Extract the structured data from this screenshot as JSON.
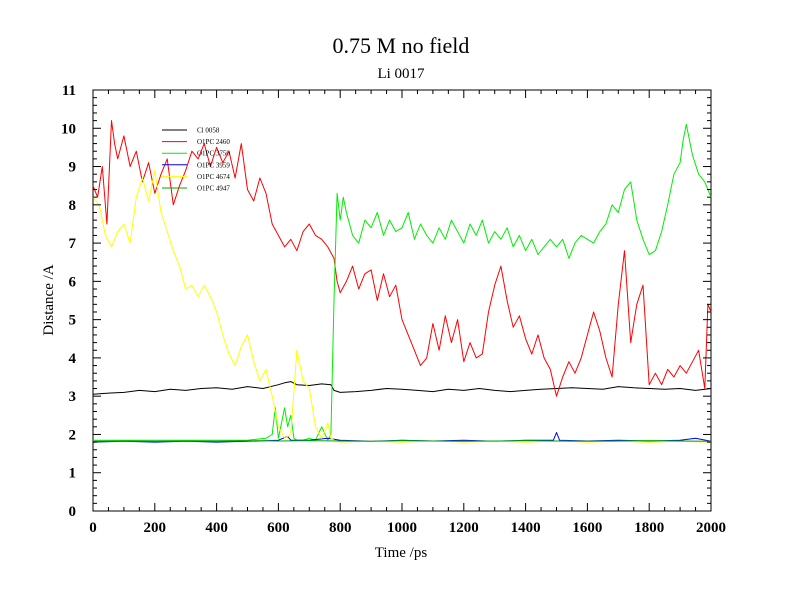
{
  "chart_data": {
    "type": "line",
    "title": "0.75 M no field",
    "subtitle": "Li 0017",
    "xlabel": "Time /ps",
    "ylabel": "Distance /A",
    "xlim": [
      0,
      2000
    ],
    "ylim": [
      0,
      11
    ],
    "xticks": [
      0,
      200,
      400,
      600,
      800,
      1000,
      1200,
      1400,
      1600,
      1800,
      2000
    ],
    "yticks": [
      0,
      1,
      2,
      3,
      4,
      5,
      6,
      7,
      8,
      9,
      10,
      11
    ],
    "grid": false,
    "legend_position": "top-left",
    "series": [
      {
        "name": "Cl 0058",
        "color": "#000000",
        "x": [
          0,
          50,
          100,
          150,
          200,
          250,
          300,
          350,
          400,
          450,
          500,
          550,
          600,
          620,
          640,
          660,
          700,
          740,
          770,
          780,
          800,
          850,
          900,
          950,
          1000,
          1050,
          1100,
          1150,
          1200,
          1250,
          1300,
          1350,
          1400,
          1450,
          1500,
          1550,
          1600,
          1650,
          1700,
          1750,
          1800,
          1850,
          1900,
          1950,
          2000
        ],
        "y": [
          3.05,
          3.08,
          3.1,
          3.15,
          3.12,
          3.18,
          3.15,
          3.2,
          3.22,
          3.18,
          3.25,
          3.2,
          3.3,
          3.35,
          3.38,
          3.3,
          3.28,
          3.32,
          3.3,
          3.15,
          3.1,
          3.12,
          3.15,
          3.2,
          3.18,
          3.15,
          3.12,
          3.18,
          3.15,
          3.2,
          3.15,
          3.12,
          3.15,
          3.18,
          3.2,
          3.22,
          3.2,
          3.18,
          3.25,
          3.22,
          3.2,
          3.18,
          3.2,
          3.15,
          3.2
        ]
      },
      {
        "name": "O1PC 2460",
        "color": "#ff0000",
        "x": [
          0,
          15,
          30,
          45,
          60,
          70,
          80,
          100,
          120,
          140,
          160,
          180,
          200,
          220,
          240,
          260,
          280,
          300,
          320,
          340,
          360,
          380,
          400,
          420,
          440,
          460,
          480,
          500,
          520,
          540,
          560,
          580,
          600,
          620,
          640,
          660,
          680,
          700,
          720,
          740,
          760,
          780,
          790,
          800,
          820,
          840,
          860,
          880,
          900,
          920,
          940,
          960,
          980,
          1000,
          1020,
          1040,
          1060,
          1080,
          1100,
          1120,
          1140,
          1160,
          1180,
          1200,
          1220,
          1240,
          1260,
          1280,
          1300,
          1320,
          1340,
          1360,
          1380,
          1400,
          1420,
          1440,
          1460,
          1480,
          1500,
          1520,
          1540,
          1560,
          1580,
          1600,
          1620,
          1640,
          1660,
          1680,
          1700,
          1720,
          1740,
          1760,
          1780,
          1800,
          1820,
          1840,
          1860,
          1880,
          1900,
          1920,
          1940,
          1960,
          1980,
          1990,
          2000
        ],
        "y": [
          8.5,
          8.2,
          9.0,
          7.5,
          10.2,
          9.6,
          9.2,
          9.8,
          9.0,
          9.4,
          8.6,
          9.1,
          8.3,
          8.8,
          9.2,
          8.0,
          8.5,
          8.9,
          9.4,
          9.2,
          9.6,
          9.0,
          9.5,
          9.1,
          9.4,
          8.7,
          9.6,
          8.4,
          8.1,
          8.7,
          8.3,
          7.5,
          7.2,
          6.9,
          7.1,
          6.8,
          7.3,
          7.5,
          7.2,
          7.1,
          6.9,
          6.6,
          6.0,
          5.7,
          6.0,
          6.4,
          5.8,
          6.2,
          6.3,
          5.5,
          6.2,
          5.6,
          5.9,
          5.0,
          4.6,
          4.2,
          3.8,
          4.0,
          4.9,
          4.2,
          5.1,
          4.4,
          5.0,
          3.9,
          4.4,
          4.0,
          4.1,
          5.2,
          5.9,
          6.4,
          5.5,
          4.8,
          5.1,
          4.5,
          4.1,
          4.6,
          4.0,
          3.7,
          3.0,
          3.5,
          3.9,
          3.6,
          4.0,
          4.6,
          5.2,
          4.7,
          4.0,
          3.5,
          5.4,
          6.8,
          4.4,
          5.4,
          5.9,
          3.3,
          3.6,
          3.3,
          3.7,
          3.5,
          3.8,
          3.6,
          3.9,
          4.2,
          3.2,
          5.4,
          5.2
        ]
      },
      {
        "name": "O1PC 3750",
        "color": "#00ee00",
        "x": [
          0,
          100,
          200,
          300,
          400,
          500,
          560,
          580,
          590,
          600,
          610,
          620,
          630,
          640,
          650,
          660,
          680,
          700,
          720,
          740,
          760,
          770,
          780,
          790,
          800,
          810,
          820,
          840,
          860,
          880,
          900,
          920,
          940,
          960,
          980,
          1000,
          1020,
          1040,
          1060,
          1080,
          1100,
          1120,
          1140,
          1160,
          1180,
          1200,
          1220,
          1240,
          1260,
          1280,
          1300,
          1320,
          1340,
          1360,
          1380,
          1400,
          1420,
          1440,
          1460,
          1480,
          1500,
          1520,
          1540,
          1560,
          1580,
          1600,
          1620,
          1640,
          1660,
          1680,
          1700,
          1720,
          1740,
          1760,
          1780,
          1800,
          1820,
          1840,
          1860,
          1880,
          1900,
          1910,
          1920,
          1940,
          1960,
          1980,
          2000
        ],
        "y": [
          1.85,
          1.85,
          1.85,
          1.85,
          1.85,
          1.85,
          1.9,
          2.0,
          2.7,
          1.9,
          2.3,
          2.7,
          2.2,
          2.5,
          1.9,
          1.85,
          1.85,
          1.9,
          1.85,
          2.2,
          1.85,
          2.0,
          5.5,
          8.3,
          7.6,
          8.2,
          7.8,
          7.2,
          7.0,
          7.6,
          7.4,
          7.8,
          7.2,
          7.6,
          7.3,
          7.4,
          7.8,
          7.1,
          7.5,
          7.2,
          7.0,
          7.4,
          7.1,
          7.6,
          7.3,
          7.0,
          7.5,
          7.2,
          7.6,
          7.0,
          7.3,
          7.1,
          7.4,
          6.9,
          7.2,
          6.8,
          7.1,
          6.7,
          6.9,
          7.1,
          6.9,
          7.1,
          6.6,
          7.0,
          7.2,
          7.1,
          7.0,
          7.3,
          7.5,
          8.0,
          7.8,
          8.4,
          8.6,
          7.6,
          7.1,
          6.7,
          6.8,
          7.3,
          8.0,
          8.8,
          9.1,
          9.7,
          10.1,
          9.3,
          8.8,
          8.6,
          8.2
        ]
      },
      {
        "name": "O1PC 3959",
        "color": "#0000ff",
        "x": [
          0,
          100,
          200,
          300,
          400,
          500,
          600,
          630,
          640,
          700,
          760,
          800,
          900,
          1000,
          1100,
          1200,
          1300,
          1400,
          1490,
          1500,
          1510,
          1600,
          1700,
          1800,
          1900,
          1950,
          2000
        ],
        "y": [
          1.8,
          1.82,
          1.8,
          1.82,
          1.8,
          1.82,
          1.85,
          1.95,
          1.85,
          1.85,
          1.9,
          1.85,
          1.82,
          1.85,
          1.83,
          1.85,
          1.82,
          1.85,
          1.85,
          2.05,
          1.85,
          1.83,
          1.85,
          1.83,
          1.85,
          1.9,
          1.82
        ]
      },
      {
        "name": "O1PC 4674",
        "color": "#ffff00",
        "x": [
          0,
          20,
          40,
          60,
          80,
          100,
          120,
          140,
          160,
          180,
          200,
          220,
          240,
          260,
          280,
          300,
          320,
          340,
          360,
          380,
          400,
          420,
          440,
          460,
          480,
          500,
          520,
          540,
          560,
          580,
          600,
          620,
          640,
          660,
          680,
          700,
          720,
          740,
          760,
          770,
          780,
          800,
          900,
          1000,
          1100,
          1200,
          1300,
          1400,
          1500,
          1600,
          1700,
          1800,
          1900,
          2000
        ],
        "y": [
          8.2,
          8.0,
          7.2,
          6.9,
          7.3,
          7.5,
          7.0,
          8.2,
          8.7,
          8.1,
          8.9,
          7.8,
          7.3,
          6.8,
          6.4,
          5.8,
          5.9,
          5.6,
          5.9,
          5.6,
          5.2,
          4.6,
          4.1,
          3.8,
          4.3,
          4.6,
          3.9,
          3.4,
          3.7,
          3.0,
          2.2,
          1.9,
          2.0,
          4.2,
          3.4,
          3.2,
          2.2,
          1.9,
          2.3,
          1.9,
          1.85,
          1.8,
          1.82,
          1.8,
          1.83,
          1.8,
          1.82,
          1.8,
          1.83,
          1.8,
          1.82,
          1.8,
          1.82,
          1.8
        ]
      },
      {
        "name": "O1PC 4947",
        "color": "#00aa00",
        "x": [
          0,
          100,
          200,
          300,
          400,
          500,
          600,
          700,
          800,
          900,
          1000,
          1100,
          1200,
          1300,
          1400,
          1500,
          1600,
          1700,
          1800,
          1900,
          2000
        ],
        "y": [
          1.82,
          1.83,
          1.82,
          1.83,
          1.82,
          1.84,
          1.83,
          1.84,
          1.83,
          1.82,
          1.84,
          1.83,
          1.82,
          1.83,
          1.84,
          1.83,
          1.82,
          1.83,
          1.84,
          1.83,
          1.82
        ]
      }
    ]
  }
}
